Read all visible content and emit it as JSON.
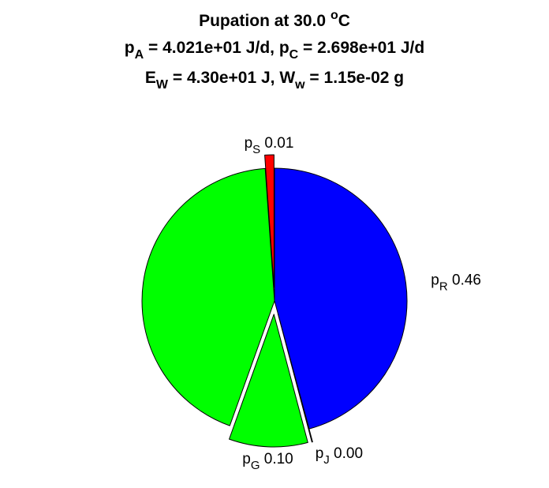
{
  "chart_data": {
    "type": "pie",
    "title": {
      "line1": {
        "text": "Pupation at 30.0 ",
        "sup": "o",
        "tail": "C"
      },
      "line2": {
        "a_main": "p",
        "a_sub": "A",
        "a_rest": " = 4.021e+01 J/d, ",
        "c_main": "p",
        "c_sub": "C",
        "c_rest": " = 2.698e+01 J/d"
      },
      "line3": {
        "e_main": "E",
        "e_sub": "W",
        "e_rest": " = 4.30e+01 J, ",
        "w_main": "W",
        "w_sub": "w",
        "w_rest": " = 1.15e-02 g"
      }
    },
    "slices": [
      {
        "id": "pR",
        "label_main": "p",
        "label_sub": "R",
        "value_text": "0.46",
        "value": 0.4579,
        "color": "#0000ff",
        "exploded": false
      },
      {
        "id": "pJ",
        "label_main": "p",
        "label_sub": "J",
        "value_text": "0.00",
        "value": 0.0009,
        "color": "#ffffff",
        "exploded": true
      },
      {
        "id": "pG",
        "label_main": "p",
        "label_sub": "G",
        "value_text": "0.10",
        "value": 0.096,
        "color": "#00ff00",
        "exploded": true
      },
      {
        "id": "pM",
        "label_main": "",
        "label_sub": "",
        "value_text": "",
        "value": 0.434,
        "color": "#00ff00",
        "exploded": false
      },
      {
        "id": "pS",
        "label_main": "p",
        "label_sub": "S",
        "value_text": "0.01",
        "value": 0.0112,
        "color": "#ff0000",
        "exploded": true
      }
    ]
  }
}
